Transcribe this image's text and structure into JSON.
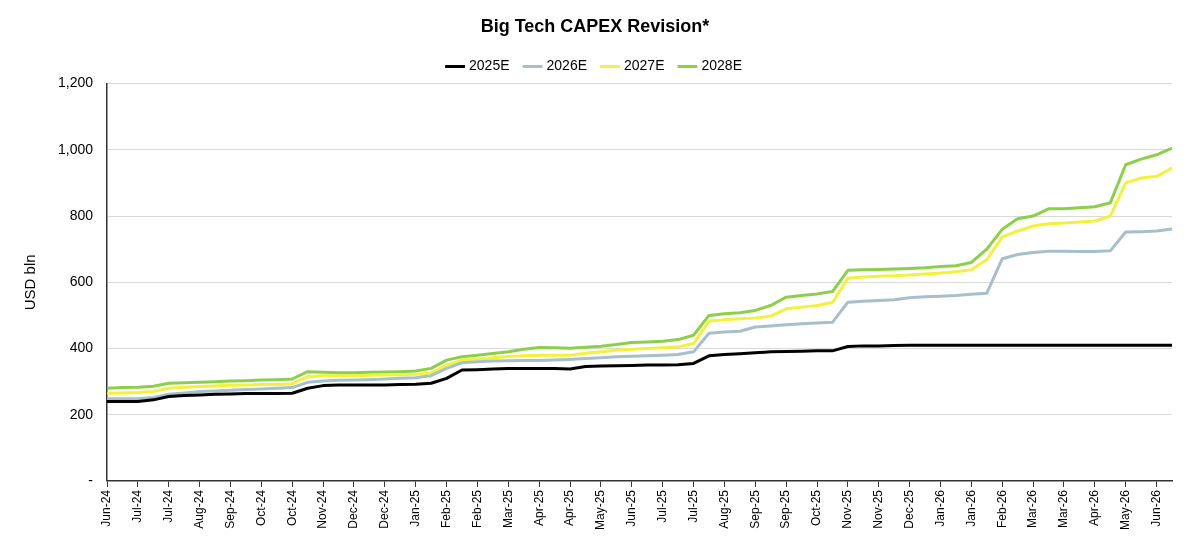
{
  "chart_data": {
    "type": "line",
    "title": "Big Tech CAPEX Revision*",
    "ylabel": "USD bln",
    "categories": [
      "Jun-24",
      null,
      "Jul-24",
      null,
      "Jul-24",
      null,
      "Aug-24",
      null,
      "Sep-24",
      null,
      "Oct-24",
      null,
      "Oct-24",
      null,
      "Nov-24",
      null,
      "Dec-24",
      null,
      "Dec-24",
      null,
      "Jan-25",
      null,
      "Feb-25",
      null,
      "Feb-25",
      null,
      "Mar-25",
      null,
      "Apr-25",
      null,
      "Apr-25",
      null,
      "May-25",
      null,
      "Jun-25",
      null,
      "Jul-25",
      null,
      "Jul-25",
      null,
      "Aug-25",
      null,
      "Sep-25",
      null,
      "Sep-25",
      null,
      "Oct-25",
      null,
      "Nov-25",
      null,
      "Nov-25",
      null,
      "Dec-25",
      null,
      "Jan-26",
      null,
      "Jan-26",
      null,
      "Feb-26",
      null,
      "Mar-26",
      null,
      "Mar-26",
      null,
      "Apr-26",
      null,
      "May-26",
      null,
      "Jun-26",
      null
    ],
    "series": [
      {
        "name": "2025E",
        "color": "#000000",
        "values": [
          240,
          240,
          240,
          245,
          255,
          258,
          260,
          262,
          263,
          264,
          264,
          264,
          265,
          280,
          288,
          290,
          290,
          290,
          290,
          291,
          292,
          295,
          310,
          335,
          336,
          338,
          340,
          340,
          340,
          340,
          338,
          346,
          347,
          348,
          349,
          350,
          350,
          351,
          355,
          378,
          382,
          384,
          387,
          390,
          391,
          392,
          393,
          393,
          406,
          408,
          408,
          409,
          410,
          410,
          410,
          410,
          410,
          410,
          410,
          410,
          410,
          410,
          410,
          410,
          410,
          410,
          410,
          410,
          410,
          410
        ]
      },
      {
        "name": "2026E",
        "color": "#a5bfcc",
        "values": [
          248,
          248,
          248,
          252,
          262,
          266,
          270,
          272,
          274,
          276,
          278,
          280,
          282,
          298,
          302,
          304,
          305,
          306,
          308,
          310,
          312,
          318,
          340,
          357,
          360,
          362,
          363,
          364,
          364,
          365,
          367,
          370,
          372,
          375,
          377,
          378,
          380,
          382,
          390,
          446,
          450,
          452,
          465,
          468,
          472,
          475,
          477,
          479,
          540,
          543,
          545,
          547,
          553,
          556,
          558,
          560,
          564,
          567,
          671,
          684,
          690,
          694,
          694,
          693,
          693,
          695,
          752,
          753,
          755,
          761
        ]
      },
      {
        "name": "2027E",
        "color": "#f2f23c",
        "values": [
          265,
          266,
          267,
          270,
          280,
          283,
          285,
          287,
          289,
          290,
          291,
          291,
          293,
          315,
          318,
          318,
          318,
          319,
          320,
          321,
          322,
          326,
          350,
          365,
          368,
          372,
          376,
          378,
          380,
          380,
          380,
          386,
          390,
          395,
          398,
          400,
          402,
          405,
          415,
          483,
          487,
          490,
          492,
          498,
          520,
          525,
          530,
          539,
          612,
          616,
          618,
          620,
          622,
          625,
          628,
          632,
          638,
          668,
          737,
          755,
          770,
          777,
          779,
          782,
          785,
          800,
          900,
          915,
          920,
          945
        ]
      },
      {
        "name": "2028E",
        "color": "#8cd04a",
        "values": [
          280,
          282,
          283,
          286,
          295,
          297,
          298,
          300,
          302,
          303,
          305,
          306,
          308,
          330,
          328,
          327,
          327,
          328,
          329,
          330,
          332,
          340,
          365,
          375,
          380,
          385,
          390,
          398,
          403,
          402,
          401,
          404,
          407,
          412,
          418,
          420,
          422,
          427,
          440,
          500,
          505,
          508,
          515,
          530,
          555,
          560,
          565,
          572,
          636,
          638,
          639,
          640,
          642,
          644,
          648,
          650,
          660,
          700,
          760,
          792,
          800,
          822,
          822,
          825,
          828,
          840,
          955,
          972,
          985,
          1005
        ]
      }
    ],
    "ylim": [
      0,
      1200
    ],
    "yticks": [
      {
        "value": 0,
        "label": "-"
      },
      {
        "value": 200,
        "label": "200"
      },
      {
        "value": 400,
        "label": "400"
      },
      {
        "value": 600,
        "label": "600"
      },
      {
        "value": 800,
        "label": "800"
      },
      {
        "value": 1000,
        "label": "1,000"
      },
      {
        "value": 1200,
        "label": "1,200"
      }
    ],
    "grid": "y",
    "legend": "top",
    "marker": "none",
    "line_style": "solid"
  }
}
